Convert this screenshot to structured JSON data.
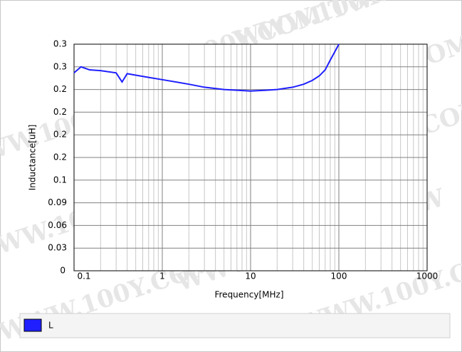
{
  "chart_data": {
    "type": "line",
    "watermark": "WWW.100Y.COM.TW",
    "x_label": "Frequency[MHz]",
    "y_label": "Inductance[uH]",
    "x_scale": "log",
    "grid": true,
    "legend": "bottom",
    "xlim": [
      0.1,
      1000
    ],
    "xticks": [
      0.1,
      1,
      10,
      100,
      1000
    ],
    "ylim": [
      0,
      0.3
    ],
    "yticks": [
      0,
      0.03,
      0.06,
      0.09,
      {
        "value": 0.12,
        "label": "0.1"
      },
      {
        "value": 0.15,
        "label": "0.2"
      },
      {
        "value": 0.18,
        "label": "0.2"
      },
      {
        "value": 0.21,
        "label": "0.2"
      },
      {
        "value": 0.24,
        "label": "0.2"
      },
      {
        "value": 0.27,
        "label": "0.3"
      },
      0.3
    ],
    "x": [
      0.1,
      0.12,
      0.15,
      0.2,
      0.3,
      0.35,
      0.4,
      0.5,
      0.7,
      1,
      2,
      3,
      5,
      7,
      10,
      15,
      20,
      30,
      40,
      50,
      60,
      70,
      80,
      90,
      100
    ],
    "series": [
      {
        "name": "L",
        "color": "#1f1fff",
        "values": [
          0.262,
          0.27,
          0.266,
          0.265,
          0.262,
          0.25,
          0.261,
          0.259,
          0.256,
          0.253,
          0.247,
          0.243,
          0.24,
          0.239,
          0.238,
          0.239,
          0.24,
          0.243,
          0.247,
          0.252,
          0.258,
          0.266,
          0.279,
          0.29,
          0.3
        ]
      }
    ]
  }
}
